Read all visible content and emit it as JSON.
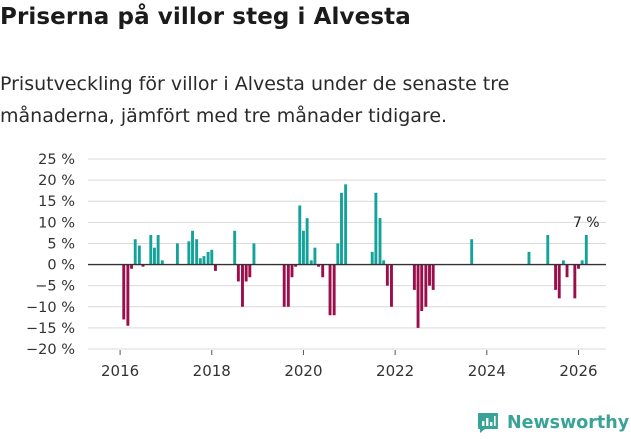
{
  "title": "Priserna på villor steg i Alvesta",
  "subtitle": "Prisutveckling för villor i Alvesta under de senaste tre månaderna, jämfört med tre månader tidigare.",
  "brand": {
    "name": "Newsworthy",
    "icon": "newsworthy-logo-icon"
  },
  "colors": {
    "positive": "#14a39a",
    "negative": "#9b0d4b",
    "grid": "#d9d9d9",
    "zero": "#333333",
    "axis": "#555555"
  },
  "chart_data": {
    "type": "bar",
    "title": "Priserna på villor steg i Alvesta",
    "xlabel": "",
    "ylabel": "",
    "ylim": [
      -20,
      25
    ],
    "xlim": [
      2015.3,
      2026.6
    ],
    "yticks": [
      -20,
      -15,
      -10,
      -5,
      0,
      5,
      10,
      15,
      20,
      25
    ],
    "ytick_labels": [
      "−20 %",
      "−15 %",
      "−10 %",
      "−5 %",
      "0 %",
      "5 %",
      "10 %",
      "15 %",
      "20 %",
      "25 %"
    ],
    "xticks": [
      2016,
      2018,
      2020,
      2022,
      2024,
      2026
    ],
    "xtick_labels": [
      "2016",
      "2018",
      "2020",
      "2022",
      "2024",
      "2026"
    ],
    "grid": true,
    "last_value_label": "7 %",
    "x": [
      2016.08,
      2016.17,
      2016.25,
      2016.33,
      2016.42,
      2016.5,
      2016.67,
      2016.75,
      2016.83,
      2016.92,
      2017.25,
      2017.5,
      2017.58,
      2017.67,
      2017.75,
      2017.83,
      2017.92,
      2018.0,
      2018.08,
      2018.5,
      2018.58,
      2018.67,
      2018.75,
      2018.83,
      2018.92,
      2019.58,
      2019.67,
      2019.75,
      2019.83,
      2019.92,
      2020.0,
      2020.08,
      2020.17,
      2020.25,
      2020.33,
      2020.42,
      2020.58,
      2020.67,
      2020.75,
      2020.83,
      2020.92,
      2021.5,
      2021.58,
      2021.67,
      2021.75,
      2021.83,
      2021.92,
      2022.42,
      2022.5,
      2022.58,
      2022.67,
      2022.75,
      2022.83,
      2023.67,
      2024.92,
      2025.33,
      2025.5,
      2025.58,
      2025.67,
      2025.75,
      2025.92,
      2026.0,
      2026.08,
      2026.17
    ],
    "values": [
      -13,
      -14.5,
      -1,
      6,
      4.5,
      -0.5,
      7,
      4,
      7,
      1,
      5,
      5.5,
      8,
      6,
      1.5,
      2,
      3,
      3.5,
      -1.5,
      8,
      -4,
      -10,
      -4,
      -3,
      5,
      -10,
      -10,
      -3,
      -0.5,
      14,
      8,
      11,
      1,
      4,
      -0.5,
      -3,
      -12,
      -12,
      5,
      17,
      19,
      3,
      17,
      11,
      1,
      -5,
      -10,
      -6,
      -15,
      -11,
      -10,
      -5,
      -6,
      6,
      3,
      7,
      -6,
      -8,
      1,
      -3,
      -8,
      -1,
      1,
      7
    ]
  }
}
